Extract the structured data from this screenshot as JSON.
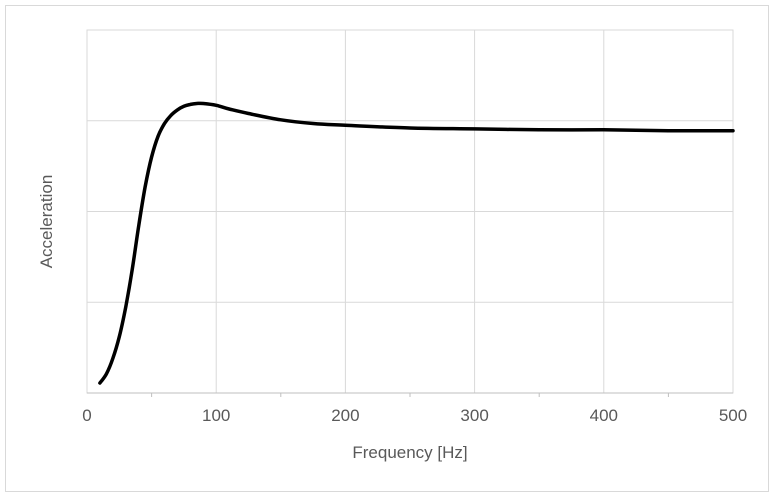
{
  "chart_data": {
    "type": "line",
    "title": "",
    "xlabel": "Frequency  [Hz]",
    "ylabel": "Acceleration",
    "xlim": [
      0,
      500
    ],
    "ylim": [
      0,
      4
    ],
    "x_ticks": [
      0,
      100,
      200,
      300,
      400,
      500
    ],
    "x_tick_labels": [
      "0",
      "100",
      "200",
      "300",
      "400",
      "500"
    ],
    "y_ticks": [
      0,
      1,
      2,
      3,
      4
    ],
    "y_tick_labels_visible": false,
    "grid": true,
    "legend": "none",
    "line_color": "#000000",
    "grid_color": "#d9d9d9",
    "series": [
      {
        "x": [
          10,
          15,
          20,
          25,
          30,
          35,
          40,
          45,
          50,
          55,
          60,
          65,
          70,
          75,
          80,
          85,
          90,
          100,
          110,
          125,
          150,
          175,
          200,
          250,
          300,
          350,
          400,
          450,
          500
        ],
        "values": [
          0.11,
          0.21,
          0.38,
          0.62,
          0.95,
          1.36,
          1.84,
          2.27,
          2.6,
          2.83,
          2.97,
          3.06,
          3.12,
          3.16,
          3.18,
          3.19,
          3.19,
          3.17,
          3.13,
          3.08,
          3.01,
          2.97,
          2.95,
          2.92,
          2.91,
          2.9,
          2.9,
          2.89,
          2.89
        ]
      }
    ]
  }
}
